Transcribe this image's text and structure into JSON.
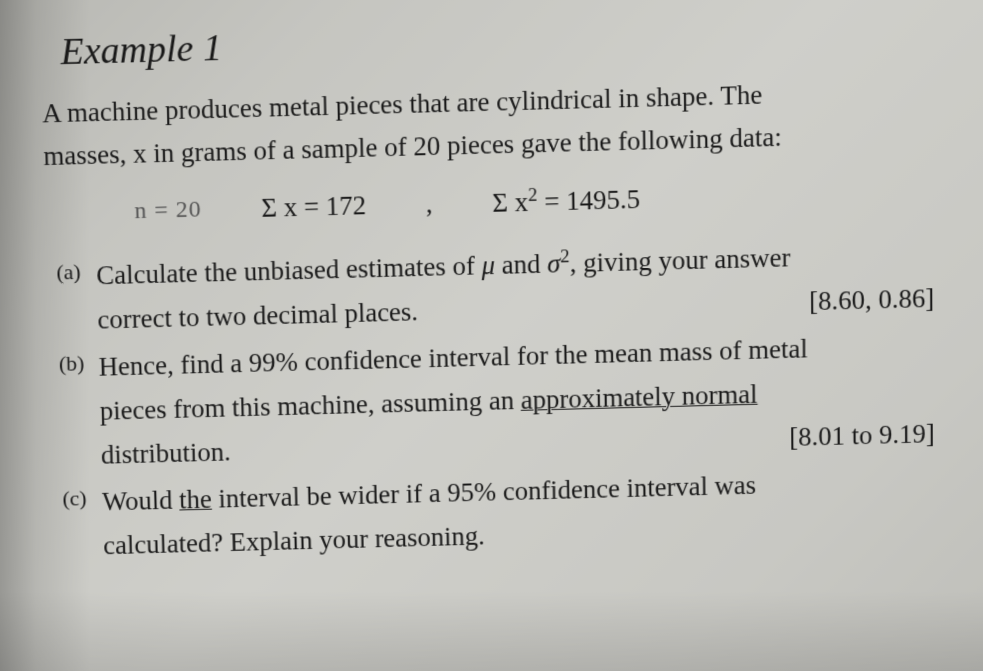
{
  "heading": "Example 1",
  "intro_line1": "A machine produces metal pieces that are cylindrical in shape. The",
  "intro_line2": "masses, x in grams of a sample of 20 pieces gave the following data:",
  "handwritten_n": "n = 20",
  "formula1": "Σ x = 172",
  "comma": ",",
  "formula2_prefix": "Σ x",
  "formula2_sup": "2",
  "formula2_suffix": " = 1495.5",
  "qa": {
    "label": "(a)",
    "text_pre": "Calculate the unbiased estimates of ",
    "mu": "μ",
    "text_mid": " and ",
    "sigma": "σ",
    "sigma_sup": "2",
    "text_post": ", giving your answer",
    "line2": "correct to two decimal places.",
    "answer": "[8.60, 0.86]"
  },
  "qb": {
    "label": "(b)",
    "line1_pre": "Hence, find a 99% confidence interval for the mean mass of metal",
    "line2_pre": "pieces from this machine, assuming an ",
    "underlined": "approximately normal",
    "line3": "distribution.",
    "answer": "[8.01 to 9.19]"
  },
  "qc": {
    "label": "(c)",
    "line1_pre": "Would ",
    "line1_underlined": "the",
    "line1_post": " interval be wider if a 95% confidence interval was",
    "line2": "calculated? Explain your reasoning."
  },
  "style": {
    "background_color": "#c5c5c0",
    "text_color": "#1a1a1a",
    "heading_fontsize": 38,
    "body_fontsize": 27,
    "label_fontsize": 22,
    "font_family": "Times New Roman",
    "handwritten_color": "#555555"
  }
}
